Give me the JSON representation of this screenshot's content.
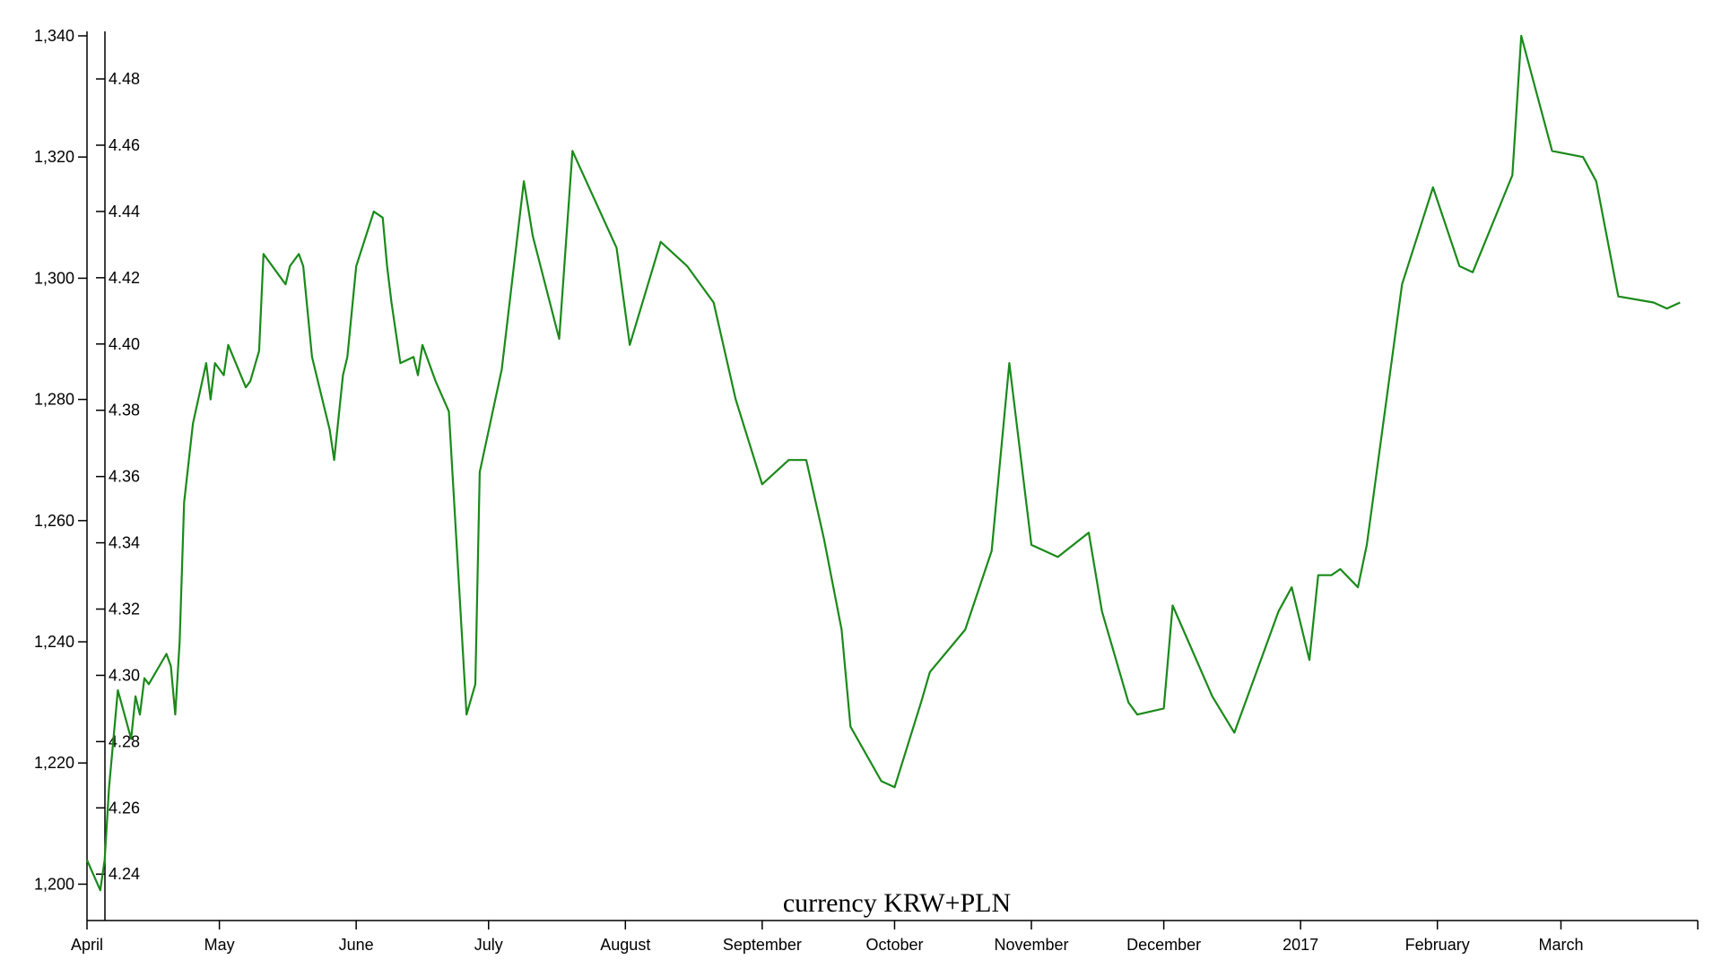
{
  "chart_data": {
    "type": "line",
    "title": "currency KRW+PLN",
    "colors": {
      "line": "#1a8a1a",
      "dots": "#ff1493"
    },
    "x_axis": {
      "range": [
        "2016-04-01",
        "2017-04-01"
      ],
      "ticks": [
        {
          "date": "2016-04-01",
          "label": "April"
        },
        {
          "date": "2016-05-01",
          "label": "May"
        },
        {
          "date": "2016-06-01",
          "label": "June"
        },
        {
          "date": "2016-07-01",
          "label": "July"
        },
        {
          "date": "2016-08-01",
          "label": "August"
        },
        {
          "date": "2016-09-01",
          "label": "September"
        },
        {
          "date": "2016-10-01",
          "label": "October"
        },
        {
          "date": "2016-11-01",
          "label": "November"
        },
        {
          "date": "2016-12-01",
          "label": "December"
        },
        {
          "date": "2017-01-01",
          "label": "2017"
        },
        {
          "date": "2017-02-01",
          "label": "February"
        },
        {
          "date": "2017-03-01",
          "label": "March"
        }
      ]
    },
    "y_axis_left": {
      "ylim": [
        1194,
        1340
      ],
      "ticks": [
        1200,
        1220,
        1240,
        1260,
        1280,
        1300,
        1320,
        1340
      ],
      "labels": [
        "1,200",
        "1,220",
        "1,240",
        "1,260",
        "1,280",
        "1,300",
        "1,320",
        "1,340"
      ]
    },
    "y_axis_right": {
      "ylim": [
        4.226,
        4.493
      ],
      "ticks": [
        4.24,
        4.26,
        4.28,
        4.3,
        4.32,
        4.34,
        4.36,
        4.38,
        4.4,
        4.42,
        4.44,
        4.46,
        4.48
      ],
      "labels": [
        "4.24",
        "4.26",
        "4.28",
        "4.30",
        "4.32",
        "4.34",
        "4.36",
        "4.38",
        "4.40",
        "4.42",
        "4.44",
        "4.46",
        "4.48"
      ]
    },
    "series": [
      {
        "style": "line",
        "axis": "left",
        "points": [
          [
            "2016-04-01",
            1204
          ],
          [
            "2016-04-04",
            1199
          ],
          [
            "2016-04-05",
            1204
          ],
          [
            "2016-04-06",
            1216
          ],
          [
            "2016-04-08",
            1232
          ],
          [
            "2016-04-11",
            1224
          ],
          [
            "2016-04-12",
            1231
          ],
          [
            "2016-04-13",
            1228
          ],
          [
            "2016-04-14",
            1234
          ],
          [
            "2016-04-15",
            1233
          ],
          [
            "2016-04-19",
            1238
          ],
          [
            "2016-04-20",
            1236
          ],
          [
            "2016-04-21",
            1228
          ],
          [
            "2016-04-22",
            1240
          ],
          [
            "2016-04-23",
            1263
          ],
          [
            "2016-04-25",
            1276
          ],
          [
            "2016-04-28",
            1286
          ],
          [
            "2016-04-29",
            1280
          ],
          [
            "2016-04-30",
            1286
          ],
          [
            "2016-05-02",
            1284
          ],
          [
            "2016-05-03",
            1289
          ],
          [
            "2016-05-07",
            1282
          ],
          [
            "2016-05-08",
            1283
          ],
          [
            "2016-05-10",
            1288
          ],
          [
            "2016-05-11",
            1304
          ],
          [
            "2016-05-16",
            1299
          ],
          [
            "2016-05-17",
            1302
          ],
          [
            "2016-05-19",
            1304
          ],
          [
            "2016-05-20",
            1302
          ],
          [
            "2016-05-22",
            1287
          ],
          [
            "2016-05-26",
            1275
          ],
          [
            "2016-05-27",
            1270
          ],
          [
            "2016-05-29",
            1284
          ],
          [
            "2016-05-30",
            1287
          ],
          [
            "2016-06-01",
            1302
          ],
          [
            "2016-06-05",
            1311
          ],
          [
            "2016-06-07",
            1310
          ],
          [
            "2016-06-08",
            1302
          ],
          [
            "2016-06-09",
            1296
          ],
          [
            "2016-06-11",
            1286
          ],
          [
            "2016-06-14",
            1287
          ],
          [
            "2016-06-15",
            1284
          ],
          [
            "2016-06-16",
            1289
          ],
          [
            "2016-06-19",
            1283
          ],
          [
            "2016-06-22",
            1278
          ],
          [
            "2016-06-26",
            1228
          ],
          [
            "2016-06-28",
            1233
          ],
          [
            "2016-06-29",
            1268
          ],
          [
            "2016-07-04",
            1285
          ],
          [
            "2016-07-09",
            1316
          ],
          [
            "2016-07-11",
            1307
          ],
          [
            "2016-07-17",
            1290
          ],
          [
            "2016-07-20",
            1321
          ],
          [
            "2016-07-30",
            1305
          ],
          [
            "2016-08-02",
            1289
          ],
          [
            "2016-08-09",
            1306
          ],
          [
            "2016-08-15",
            1302
          ],
          [
            "2016-08-21",
            1296
          ],
          [
            "2016-08-26",
            1280
          ],
          [
            "2016-09-01",
            1266
          ],
          [
            "2016-09-07",
            1270
          ],
          [
            "2016-09-11",
            1270
          ],
          [
            "2016-09-15",
            1257
          ],
          [
            "2016-09-19",
            1242
          ],
          [
            "2016-09-21",
            1226
          ],
          [
            "2016-09-28",
            1217
          ],
          [
            "2016-10-01",
            1216
          ],
          [
            "2016-10-07",
            1230
          ],
          [
            "2016-10-09",
            1235
          ],
          [
            "2016-10-17",
            1242
          ],
          [
            "2016-10-23",
            1255
          ],
          [
            "2016-10-27",
            1286
          ],
          [
            "2016-11-01",
            1256
          ],
          [
            "2016-11-07",
            1254
          ],
          [
            "2016-11-14",
            1258
          ],
          [
            "2016-11-17",
            1245
          ],
          [
            "2016-11-23",
            1230
          ],
          [
            "2016-11-25",
            1228
          ],
          [
            "2016-12-01",
            1229
          ],
          [
            "2016-12-03",
            1246
          ],
          [
            "2016-12-12",
            1231
          ],
          [
            "2016-12-17",
            1225
          ],
          [
            "2016-12-23",
            1237
          ],
          [
            "2016-12-27",
            1245
          ],
          [
            "2016-12-30",
            1249
          ],
          [
            "2017-01-03",
            1237
          ],
          [
            "2017-01-05",
            1251
          ],
          [
            "2017-01-08",
            1251
          ],
          [
            "2017-01-10",
            1252
          ],
          [
            "2017-01-14",
            1249
          ],
          [
            "2017-01-16",
            1256
          ],
          [
            "2017-01-24",
            1299
          ],
          [
            "2017-01-31",
            1315
          ],
          [
            "2017-02-06",
            1302
          ],
          [
            "2017-02-09",
            1301
          ],
          [
            "2017-02-18",
            1317
          ],
          [
            "2017-02-20",
            1340
          ],
          [
            "2017-02-27",
            1321
          ],
          [
            "2017-03-06",
            1320
          ],
          [
            "2017-03-09",
            1316
          ],
          [
            "2017-03-14",
            1297
          ],
          [
            "2017-03-22",
            1296
          ],
          [
            "2017-03-25",
            1295
          ],
          [
            "2017-03-28",
            1296
          ]
        ]
      }
    ],
    "series_axis_note_right": "dots plotted on right axis",
    "dots": []
  }
}
